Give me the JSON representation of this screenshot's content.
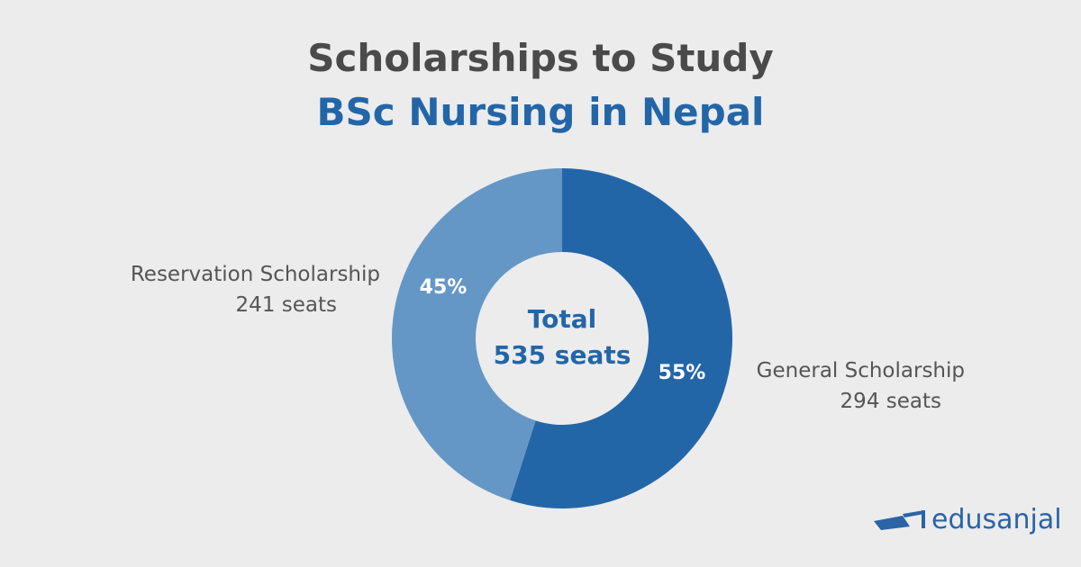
{
  "title": "Scholarships to Study",
  "subtitle": "BSc Nursing in Nepal",
  "chart_data": {
    "type": "pie",
    "donut": true,
    "center_label": [
      "Total",
      "535 seats"
    ],
    "slices": [
      {
        "name": "General Scholarship",
        "value": 294,
        "unit": "seats",
        "percent_label": "55%",
        "color": "#2366a8",
        "value_label": "294  seats"
      },
      {
        "name": "Reservation Scholarship",
        "value": 241,
        "unit": "seats",
        "percent_label": "45%",
        "color": "#6497c6",
        "value_label": "241  seats"
      }
    ]
  },
  "logo": {
    "text": "edusanjal",
    "color": "#2a64a6"
  }
}
